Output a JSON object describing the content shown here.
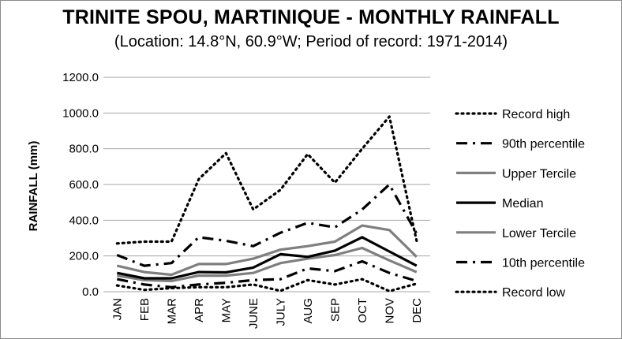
{
  "chart_data": {
    "type": "line",
    "title": "TRINITE SPOU, MARTINIQUE - MONTHLY RAINFALL",
    "subtitle": "(Location: 14.8°N, 60.9°W; Period of record: 1971-2014)",
    "xlabel": "",
    "ylabel": "RAINFALL (mm)",
    "ylim": [
      0,
      1200
    ],
    "yticks": [
      "0.0",
      "200.0",
      "400.0",
      "600.0",
      "800.0",
      "1000.0",
      "1200.0"
    ],
    "categories": [
      "JAN",
      "FEB",
      "MAR",
      "APR",
      "MAY",
      "JUNE",
      "JULY",
      "AUG",
      "SEP",
      "OCT",
      "NOV",
      "DEC"
    ],
    "grid": "horizontal",
    "legend_position": "right",
    "series": [
      {
        "name": "Record high",
        "color": "#000000",
        "style": "dotted",
        "values": [
          270,
          280,
          280,
          630,
          775,
          460,
          570,
          770,
          610,
          800,
          980,
          285
        ]
      },
      {
        "name": "90th percentile",
        "color": "#000000",
        "style": "dashdot",
        "values": [
          205,
          145,
          160,
          305,
          285,
          255,
          330,
          385,
          360,
          460,
          600,
          325
        ]
      },
      {
        "name": "Upper Tercile",
        "color": "#7f7f7f",
        "style": "solid",
        "values": [
          145,
          110,
          95,
          155,
          155,
          185,
          235,
          255,
          280,
          370,
          345,
          195
        ]
      },
      {
        "name": "Median",
        "color": "#000000",
        "style": "solid",
        "values": [
          105,
          75,
          75,
          110,
          108,
          135,
          210,
          195,
          230,
          305,
          225,
          145
        ]
      },
      {
        "name": "Lower Tercile",
        "color": "#7f7f7f",
        "style": "solid",
        "values": [
          90,
          65,
          60,
          90,
          90,
          105,
          160,
          185,
          205,
          245,
          175,
          110
        ]
      },
      {
        "name": "10th percentile",
        "color": "#000000",
        "style": "dashdot",
        "values": [
          70,
          40,
          25,
          40,
          50,
          65,
          70,
          130,
          115,
          170,
          105,
          60
        ]
      },
      {
        "name": "Record low",
        "color": "#000000",
        "style": "dotted",
        "values": [
          35,
          10,
          20,
          25,
          25,
          40,
          5,
          65,
          40,
          70,
          3,
          45
        ]
      }
    ]
  }
}
